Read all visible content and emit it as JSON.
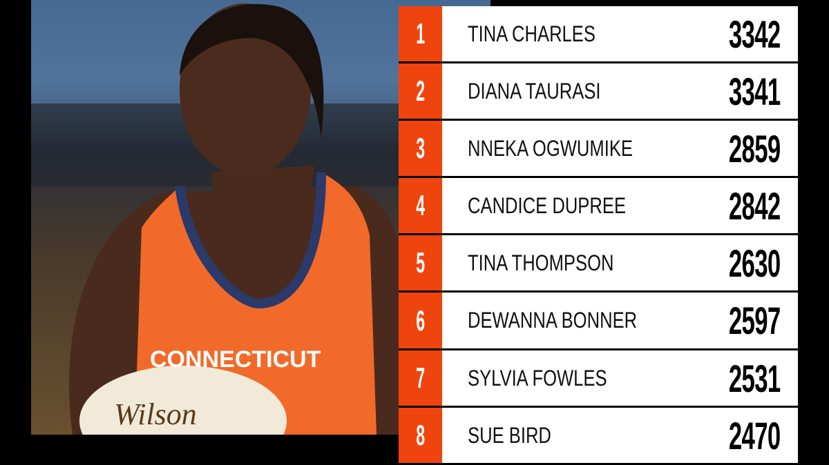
{
  "photo": {
    "jersey_text": "CONNECTICUT",
    "ball_brand": "Wilson",
    "jersey_color": "#f26a2a"
  },
  "colors": {
    "rank_bg": "#f0440f",
    "row_bg": "#ffffff",
    "background": "#000000"
  },
  "leaderboard": [
    {
      "rank": "1",
      "name": "TINA CHARLES",
      "value": "3342"
    },
    {
      "rank": "2",
      "name": "DIANA TAURASI",
      "value": "3341"
    },
    {
      "rank": "3",
      "name": "NNEKA OGWUMIKE",
      "value": "2859"
    },
    {
      "rank": "4",
      "name": "CANDICE DUPREE",
      "value": "2842"
    },
    {
      "rank": "5",
      "name": "TINA THOMPSON",
      "value": "2630"
    },
    {
      "rank": "6",
      "name": "DEWANNA BONNER",
      "value": "2597"
    },
    {
      "rank": "7",
      "name": "SYLVIA FOWLES",
      "value": "2531"
    },
    {
      "rank": "8",
      "name": "SUE BIRD",
      "value": "2470"
    }
  ]
}
